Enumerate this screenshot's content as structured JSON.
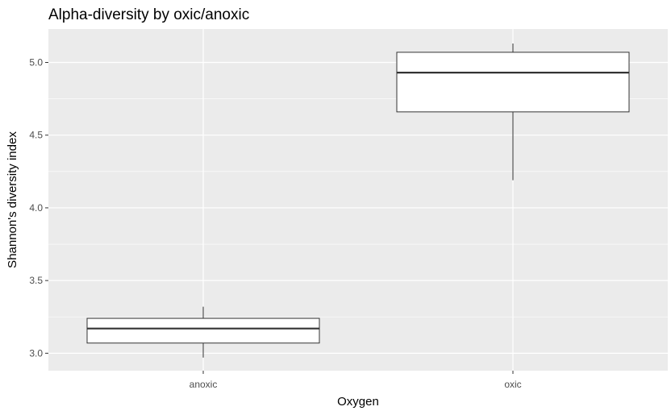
{
  "chart_data": {
    "type": "box",
    "title": "Alpha-diversity by oxic/anoxic",
    "xlabel": "Oxygen",
    "ylabel": "Shannon's diversity index",
    "categories": [
      "anoxic",
      "oxic"
    ],
    "boxes": [
      {
        "category": "anoxic",
        "min": 2.97,
        "q1": 3.07,
        "median": 3.17,
        "q3": 3.24,
        "max": 3.32
      },
      {
        "category": "oxic",
        "min": 4.19,
        "q1": 4.66,
        "median": 4.93,
        "q3": 5.07,
        "max": 5.13
      }
    ],
    "yticks": [
      3.0,
      3.5,
      4.0,
      4.5,
      5.0
    ],
    "ytick_labels": [
      "3.0",
      "3.5",
      "4.0",
      "4.5",
      "5.0"
    ],
    "ylim": [
      2.88,
      5.23
    ],
    "grid": true,
    "colors": {
      "panel": "#ebebeb",
      "grid": "#ffffff",
      "box_fill": "#ffffff",
      "box_stroke": "#333333"
    }
  }
}
